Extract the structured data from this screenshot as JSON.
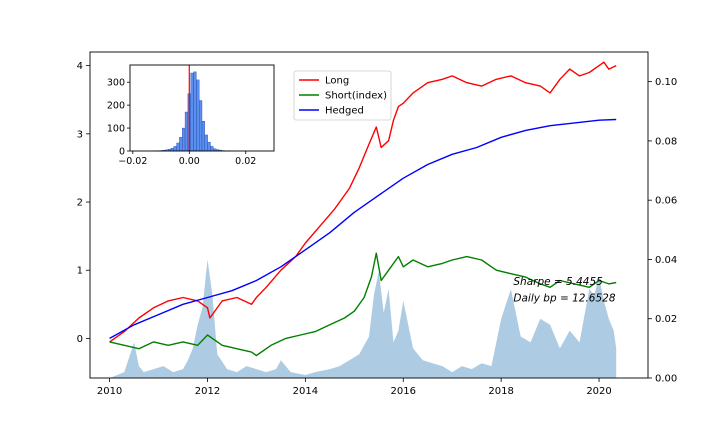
{
  "chart_data": [
    {
      "type": "line",
      "role": "main",
      "x_ticks": [
        "2010",
        "2012",
        "2014",
        "2016",
        "2018",
        "2020"
      ],
      "xlim": [
        2009.6,
        2021.0
      ],
      "y_left_ticks": [
        "0",
        "1",
        "2",
        "3",
        "4"
      ],
      "ylim_left": [
        -0.58,
        4.2
      ],
      "y_right_ticks": [
        "0.00",
        "0.02",
        "0.04",
        "0.06",
        "0.08",
        "0.10"
      ],
      "ylim_right": [
        0.0,
        0.11
      ],
      "grid": false,
      "legend_position": "upper-center",
      "series": [
        {
          "name": "Long",
          "color": "#ff0000",
          "axis": "left",
          "x": [
            2010.0,
            2010.3,
            2010.6,
            2010.9,
            2011.2,
            2011.5,
            2011.8,
            2012.0,
            2012.05,
            2012.3,
            2012.6,
            2012.9,
            2013.0,
            2013.2,
            2013.5,
            2013.8,
            2014.0,
            2014.3,
            2014.6,
            2014.9,
            2015.1,
            2015.3,
            2015.45,
            2015.55,
            2015.7,
            2015.8,
            2015.9,
            2016.0,
            2016.2,
            2016.5,
            2016.8,
            2017.0,
            2017.3,
            2017.6,
            2017.9,
            2018.2,
            2018.5,
            2018.8,
            2019.0,
            2019.2,
            2019.4,
            2019.6,
            2019.8,
            2020.0,
            2020.1,
            2020.2,
            2020.35
          ],
          "y": [
            -0.05,
            0.1,
            0.3,
            0.45,
            0.55,
            0.6,
            0.55,
            0.45,
            0.3,
            0.55,
            0.6,
            0.5,
            0.6,
            0.75,
            1.0,
            1.2,
            1.4,
            1.65,
            1.9,
            2.2,
            2.5,
            2.85,
            3.1,
            2.8,
            2.9,
            3.2,
            3.4,
            3.45,
            3.6,
            3.75,
            3.8,
            3.85,
            3.75,
            3.7,
            3.8,
            3.85,
            3.75,
            3.7,
            3.6,
            3.8,
            3.95,
            3.85,
            3.9,
            4.0,
            4.05,
            3.95,
            4.0
          ]
        },
        {
          "name": "Short(index)",
          "color": "#008000",
          "axis": "left",
          "x": [
            2010.0,
            2010.3,
            2010.6,
            2010.9,
            2011.2,
            2011.5,
            2011.8,
            2012.0,
            2012.3,
            2012.6,
            2012.9,
            2013.0,
            2013.3,
            2013.6,
            2013.9,
            2014.2,
            2014.5,
            2014.8,
            2015.0,
            2015.2,
            2015.35,
            2015.45,
            2015.55,
            2015.7,
            2015.9,
            2016.0,
            2016.2,
            2016.5,
            2016.8,
            2017.0,
            2017.3,
            2017.6,
            2017.9,
            2018.2,
            2018.5,
            2018.8,
            2019.0,
            2019.2,
            2019.5,
            2019.8,
            2020.0,
            2020.2,
            2020.35
          ],
          "y": [
            -0.05,
            -0.1,
            -0.15,
            -0.05,
            -0.1,
            -0.05,
            -0.1,
            0.05,
            -0.1,
            -0.15,
            -0.2,
            -0.25,
            -0.1,
            0.0,
            0.05,
            0.1,
            0.2,
            0.3,
            0.4,
            0.6,
            0.9,
            1.25,
            0.85,
            1.0,
            1.2,
            1.05,
            1.15,
            1.05,
            1.1,
            1.15,
            1.2,
            1.15,
            1.0,
            0.95,
            0.9,
            0.8,
            0.75,
            0.85,
            0.8,
            0.75,
            0.85,
            0.8,
            0.82
          ]
        },
        {
          "name": "Hedged",
          "color": "#0000ff",
          "axis": "left",
          "x": [
            2010.0,
            2010.5,
            2011.0,
            2011.5,
            2012.0,
            2012.5,
            2013.0,
            2013.5,
            2014.0,
            2014.5,
            2015.0,
            2015.5,
            2016.0,
            2016.5,
            2017.0,
            2017.5,
            2018.0,
            2018.5,
            2019.0,
            2019.5,
            2020.0,
            2020.35
          ],
          "y": [
            0.0,
            0.2,
            0.35,
            0.5,
            0.6,
            0.7,
            0.85,
            1.05,
            1.3,
            1.55,
            1.85,
            2.1,
            2.35,
            2.55,
            2.7,
            2.8,
            2.95,
            3.05,
            3.12,
            3.16,
            3.2,
            3.21
          ]
        },
        {
          "name": "",
          "type": "area",
          "color": "#a9c9e2",
          "axis": "right",
          "x": [
            2010.0,
            2010.3,
            2010.5,
            2010.6,
            2010.7,
            2010.9,
            2011.1,
            2011.3,
            2011.5,
            2011.6,
            2011.7,
            2011.8,
            2011.9,
            2012.0,
            2012.1,
            2012.2,
            2012.4,
            2012.6,
            2012.8,
            2013.0,
            2013.2,
            2013.4,
            2013.5,
            2013.7,
            2014.0,
            2014.2,
            2014.5,
            2014.7,
            2014.9,
            2015.1,
            2015.3,
            2015.4,
            2015.5,
            2015.6,
            2015.7,
            2015.8,
            2015.9,
            2016.0,
            2016.2,
            2016.4,
            2016.6,
            2016.8,
            2017.0,
            2017.2,
            2017.4,
            2017.6,
            2017.8,
            2018.0,
            2018.2,
            2018.4,
            2018.6,
            2018.8,
            2019.0,
            2019.2,
            2019.4,
            2019.6,
            2019.8,
            2019.9,
            2020.0,
            2020.1,
            2020.2,
            2020.3,
            2020.35
          ],
          "y": [
            0.0,
            0.002,
            0.012,
            0.004,
            0.002,
            0.003,
            0.004,
            0.002,
            0.003,
            0.006,
            0.01,
            0.018,
            0.024,
            0.04,
            0.028,
            0.008,
            0.003,
            0.002,
            0.004,
            0.003,
            0.002,
            0.003,
            0.006,
            0.002,
            0.001,
            0.002,
            0.003,
            0.004,
            0.006,
            0.008,
            0.014,
            0.028,
            0.036,
            0.022,
            0.03,
            0.012,
            0.016,
            0.026,
            0.01,
            0.006,
            0.005,
            0.004,
            0.002,
            0.004,
            0.003,
            0.005,
            0.004,
            0.02,
            0.03,
            0.014,
            0.012,
            0.02,
            0.018,
            0.01,
            0.016,
            0.012,
            0.03,
            0.028,
            0.034,
            0.026,
            0.02,
            0.016,
            0.01
          ]
        }
      ],
      "annotations": [
        {
          "text": "Sharpe = 5.4455",
          "x": 2018.25,
          "y": 0.84
        },
        {
          "text": "Daily bp = 12.6528",
          "x": 2018.25,
          "y": 0.6
        }
      ]
    },
    {
      "type": "bar",
      "role": "inset-histogram",
      "x_ticks": [
        "−0.02",
        "0.00",
        "0.02"
      ],
      "xlim": [
        -0.021,
        0.03
      ],
      "y_ticks": [
        "0",
        "100",
        "200",
        "300"
      ],
      "ylim": [
        0,
        375
      ],
      "bar_color": "#5a8ff0",
      "marker_x": 0.0,
      "marker_color": "#ff0000",
      "bins_x": [
        -0.012,
        -0.011,
        -0.01,
        -0.009,
        -0.008,
        -0.007,
        -0.006,
        -0.005,
        -0.004,
        -0.003,
        -0.002,
        -0.001,
        0.0,
        0.001,
        0.002,
        0.003,
        0.004,
        0.005,
        0.006,
        0.007,
        0.008,
        0.009,
        0.01,
        0.011,
        0.012,
        0.013,
        0.014
      ],
      "bins_width": 0.001,
      "values": [
        1,
        1,
        2,
        3,
        5,
        8,
        12,
        20,
        35,
        60,
        100,
        170,
        250,
        340,
        345,
        310,
        220,
        130,
        70,
        38,
        20,
        10,
        6,
        4,
        2,
        1,
        1
      ]
    }
  ]
}
